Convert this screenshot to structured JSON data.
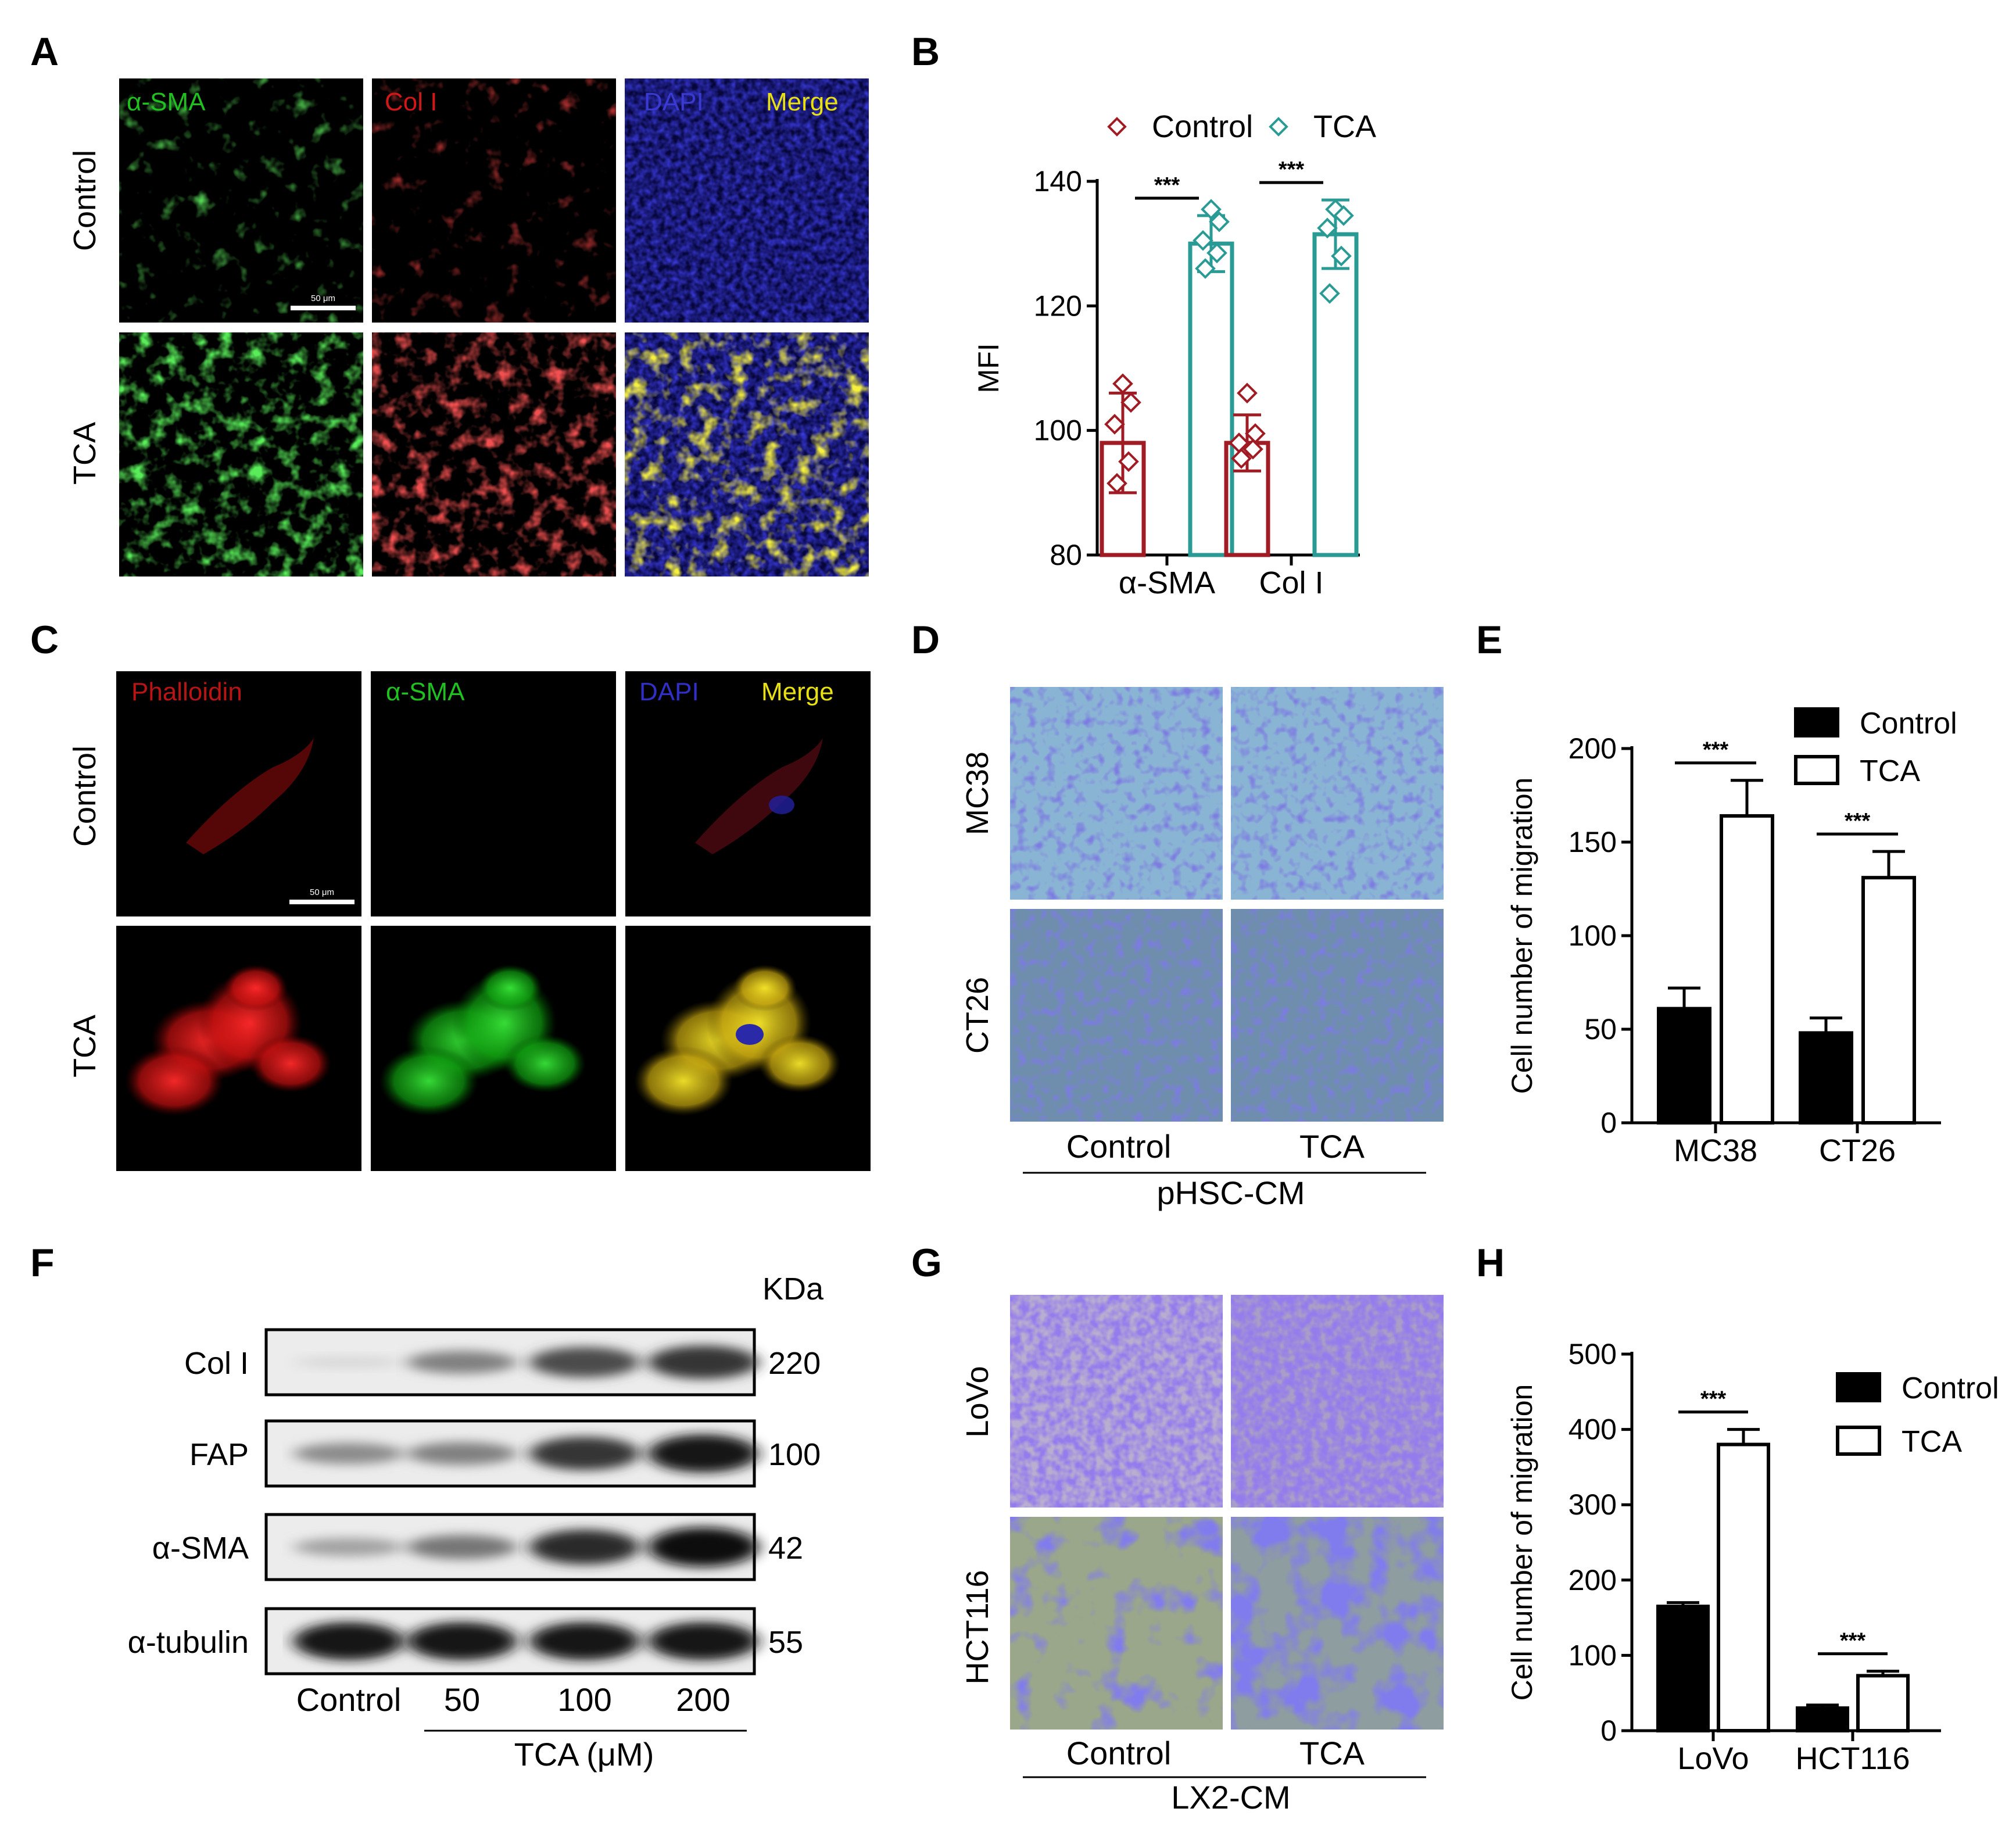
{
  "panel_letters": [
    "A",
    "B",
    "C",
    "D",
    "E",
    "F",
    "G",
    "H"
  ],
  "panel_a": {
    "channels": [
      "α-SMA",
      "Col I",
      "DAPI",
      "Merge"
    ],
    "rows": [
      "Control",
      "TCA"
    ],
    "scale_bar": "50 μm",
    "colors": {
      "green": "#1fc01f",
      "red": "#d01818",
      "blue": "#3030c8",
      "yellow": "#e8e010"
    }
  },
  "panel_c": {
    "channels": [
      "Phalloidin",
      "α-SMA",
      "DAPI",
      "Merge"
    ],
    "rows": [
      "Control",
      "TCA"
    ],
    "scale_bar": "50 μm"
  },
  "panel_d": {
    "rows": [
      "MC38",
      "CT26"
    ],
    "columns": [
      "Control",
      "TCA"
    ],
    "group_label": "pHSC-CM"
  },
  "panel_f": {
    "unit_header": "KDa",
    "bands": [
      {
        "label": "Col I",
        "kda": "220",
        "intensity": [
          0.05,
          0.45,
          0.7,
          0.8
        ]
      },
      {
        "label": "FAP",
        "kda": "100",
        "intensity": [
          0.4,
          0.45,
          0.8,
          0.95
        ]
      },
      {
        "label": "α-SMA",
        "kda": "42",
        "intensity": [
          0.3,
          0.5,
          0.85,
          1.0
        ]
      },
      {
        "label": "α-tubulin",
        "kda": "55",
        "intensity": [
          0.95,
          0.95,
          0.95,
          0.95
        ]
      }
    ],
    "lanes": [
      "Control",
      "50",
      "100",
      "200"
    ],
    "group_label": "TCA (μM)"
  },
  "panel_g": {
    "rows": [
      "LoVo",
      "HCT116"
    ],
    "columns": [
      "Control",
      "TCA"
    ],
    "group_label": "LX2-CM"
  },
  "chart_data": [
    {
      "panel": "B",
      "type": "bar",
      "categories": [
        "α-SMA",
        "Col I"
      ],
      "ylabel": "MFI",
      "ylim": [
        80,
        140
      ],
      "yticks": [
        80,
        100,
        120,
        140
      ],
      "legend": "top",
      "significance": [
        "***",
        "***"
      ],
      "series": [
        {
          "name": "Control",
          "color": "#a01c24",
          "values": [
            98,
            98
          ],
          "err": [
            8,
            4.5
          ],
          "points": [
            [
              107.5,
              104.5,
              101,
              95,
              91.5
            ],
            [
              106,
              99.5,
              98,
              97,
              95.5
            ]
          ]
        },
        {
          "name": "TCA",
          "color": "#2a9a94",
          "values": [
            130,
            131.5
          ],
          "err": [
            4.5,
            5.5
          ],
          "points": [
            [
              135.5,
              133.5,
              130.5,
              128.5,
              126
            ],
            [
              135.5,
              134.5,
              132.5,
              128,
              122
            ]
          ]
        }
      ]
    },
    {
      "panel": "E",
      "type": "bar",
      "categories": [
        "MC38",
        "CT26"
      ],
      "ylabel": "Cell number of migration",
      "ylim": [
        0,
        200
      ],
      "yticks": [
        0,
        50,
        100,
        150,
        200
      ],
      "legend": "top-right",
      "significance": [
        "***",
        "***"
      ],
      "series": [
        {
          "name": "Control",
          "color": "#000000",
          "values": [
            61,
            48
          ],
          "err": [
            11,
            8
          ]
        },
        {
          "name": "TCA",
          "color": "#ffffff",
          "values": [
            164,
            131
          ],
          "err": [
            19,
            14
          ]
        }
      ]
    },
    {
      "panel": "H",
      "type": "bar",
      "categories": [
        "LoVo",
        "HCT116"
      ],
      "ylabel": "Cell number of migration",
      "ylim": [
        0,
        500
      ],
      "yticks": [
        0,
        100,
        200,
        300,
        400,
        500
      ],
      "legend": "top-right",
      "significance": [
        "***",
        "***"
      ],
      "series": [
        {
          "name": "Control",
          "color": "#000000",
          "values": [
            165,
            30
          ],
          "err": [
            5,
            4
          ]
        },
        {
          "name": "TCA",
          "color": "#ffffff",
          "values": [
            380,
            73
          ],
          "err": [
            20,
            6
          ]
        }
      ]
    }
  ]
}
